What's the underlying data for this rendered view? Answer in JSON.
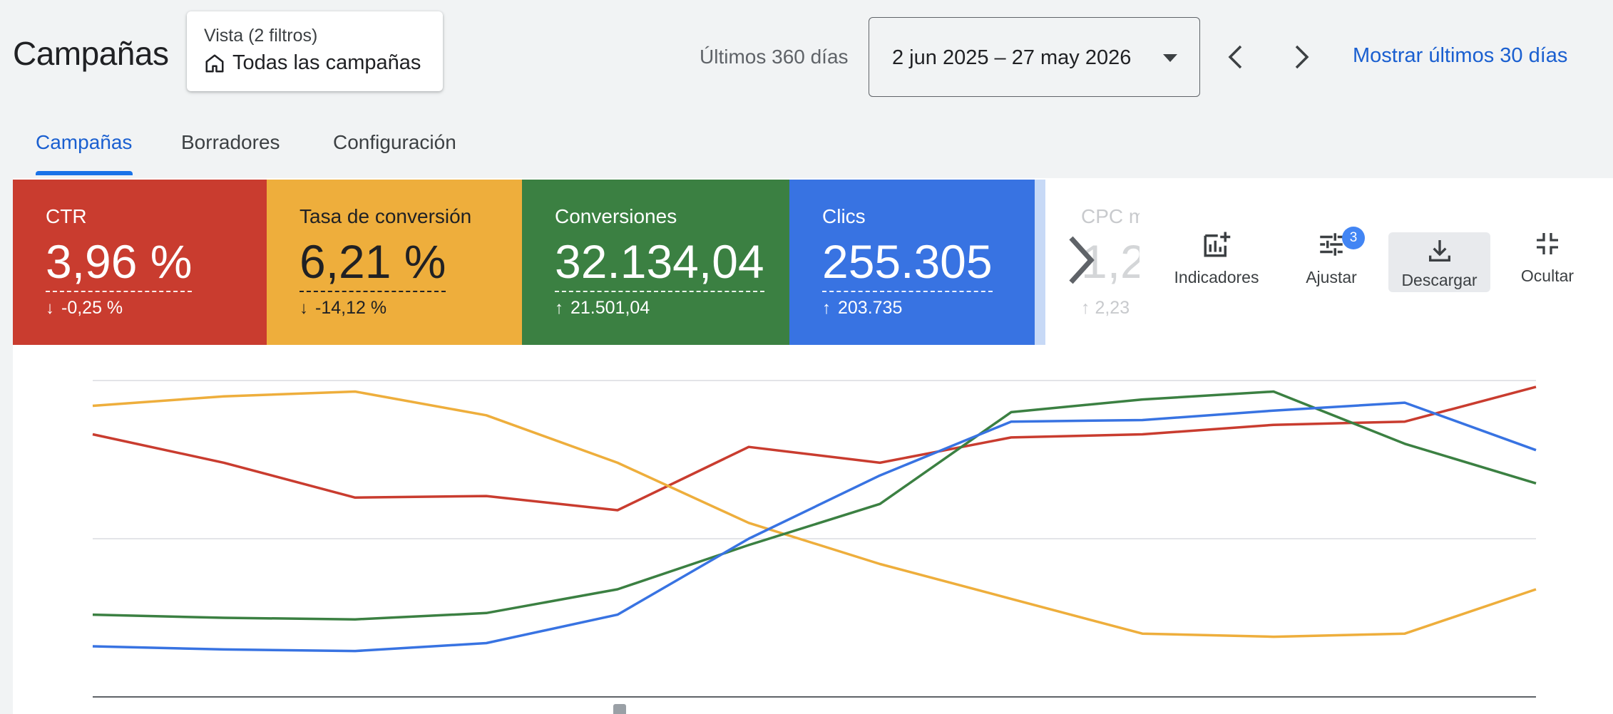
{
  "header": {
    "title": "Campañas",
    "view": {
      "label": "Vista (2 filtros)",
      "value": "Todas las campañas",
      "icon": "home-icon"
    },
    "range_label": "Últimos 360 días",
    "date_range": "2 jun 2025 – 27 may 2026",
    "show_last_30": "Mostrar últimos 30 días"
  },
  "tabs": [
    {
      "label": "Campañas",
      "active": true
    },
    {
      "label": "Borradores",
      "active": false
    },
    {
      "label": "Configuración",
      "active": false
    }
  ],
  "metrics": [
    {
      "label": "CTR",
      "value": "3,96 %",
      "delta": "-0,25 %",
      "direction": "down",
      "color": "#c93c2f"
    },
    {
      "label": "Tasa de conversión",
      "value": "6,21 %",
      "delta": "-14,12 %",
      "direction": "down",
      "color": "#eeae3c"
    },
    {
      "label": "Conversiones",
      "value": "32.134,04",
      "delta": "21.501,04",
      "direction": "up",
      "color": "#3b8042"
    },
    {
      "label": "Clics",
      "value": "255.305",
      "delta": "203.735",
      "direction": "up",
      "color": "#3873e2"
    }
  ],
  "faded_metric": {
    "label": "CPC m",
    "value": "1,2",
    "delta": "2,23"
  },
  "tools": [
    {
      "label": "Indicadores",
      "icon": "add-chart-icon"
    },
    {
      "label": "Ajustar",
      "icon": "tune-icon",
      "badge": "3"
    },
    {
      "label": "Descargar",
      "icon": "download-icon",
      "highlighted": true
    },
    {
      "label": "Ocultar",
      "icon": "collapse-icon"
    }
  ],
  "chart_data": {
    "type": "line",
    "x": [
      1,
      2,
      3,
      4,
      5,
      6,
      7,
      8,
      9,
      10,
      11,
      12
    ],
    "ylim": [
      0,
      100
    ],
    "grid": true,
    "series": [
      {
        "color": "#c93c2f",
        "values": [
          83,
          74,
          63,
          63.5,
          59,
          79,
          74,
          82,
          83,
          86,
          87,
          98
        ]
      },
      {
        "color": "#eeae3c",
        "values": [
          92,
          95,
          96.5,
          89,
          74,
          55,
          42,
          31,
          20,
          19,
          20,
          34
        ]
      },
      {
        "color": "#3b8042",
        "values": [
          26,
          25,
          24.5,
          26.5,
          34,
          48,
          61,
          90,
          94,
          96.5,
          80,
          67.5
        ]
      },
      {
        "color": "#3873e2",
        "values": [
          16,
          15,
          14.5,
          17,
          26,
          50,
          70,
          87,
          87.5,
          90.5,
          93,
          78
        ]
      }
    ]
  }
}
